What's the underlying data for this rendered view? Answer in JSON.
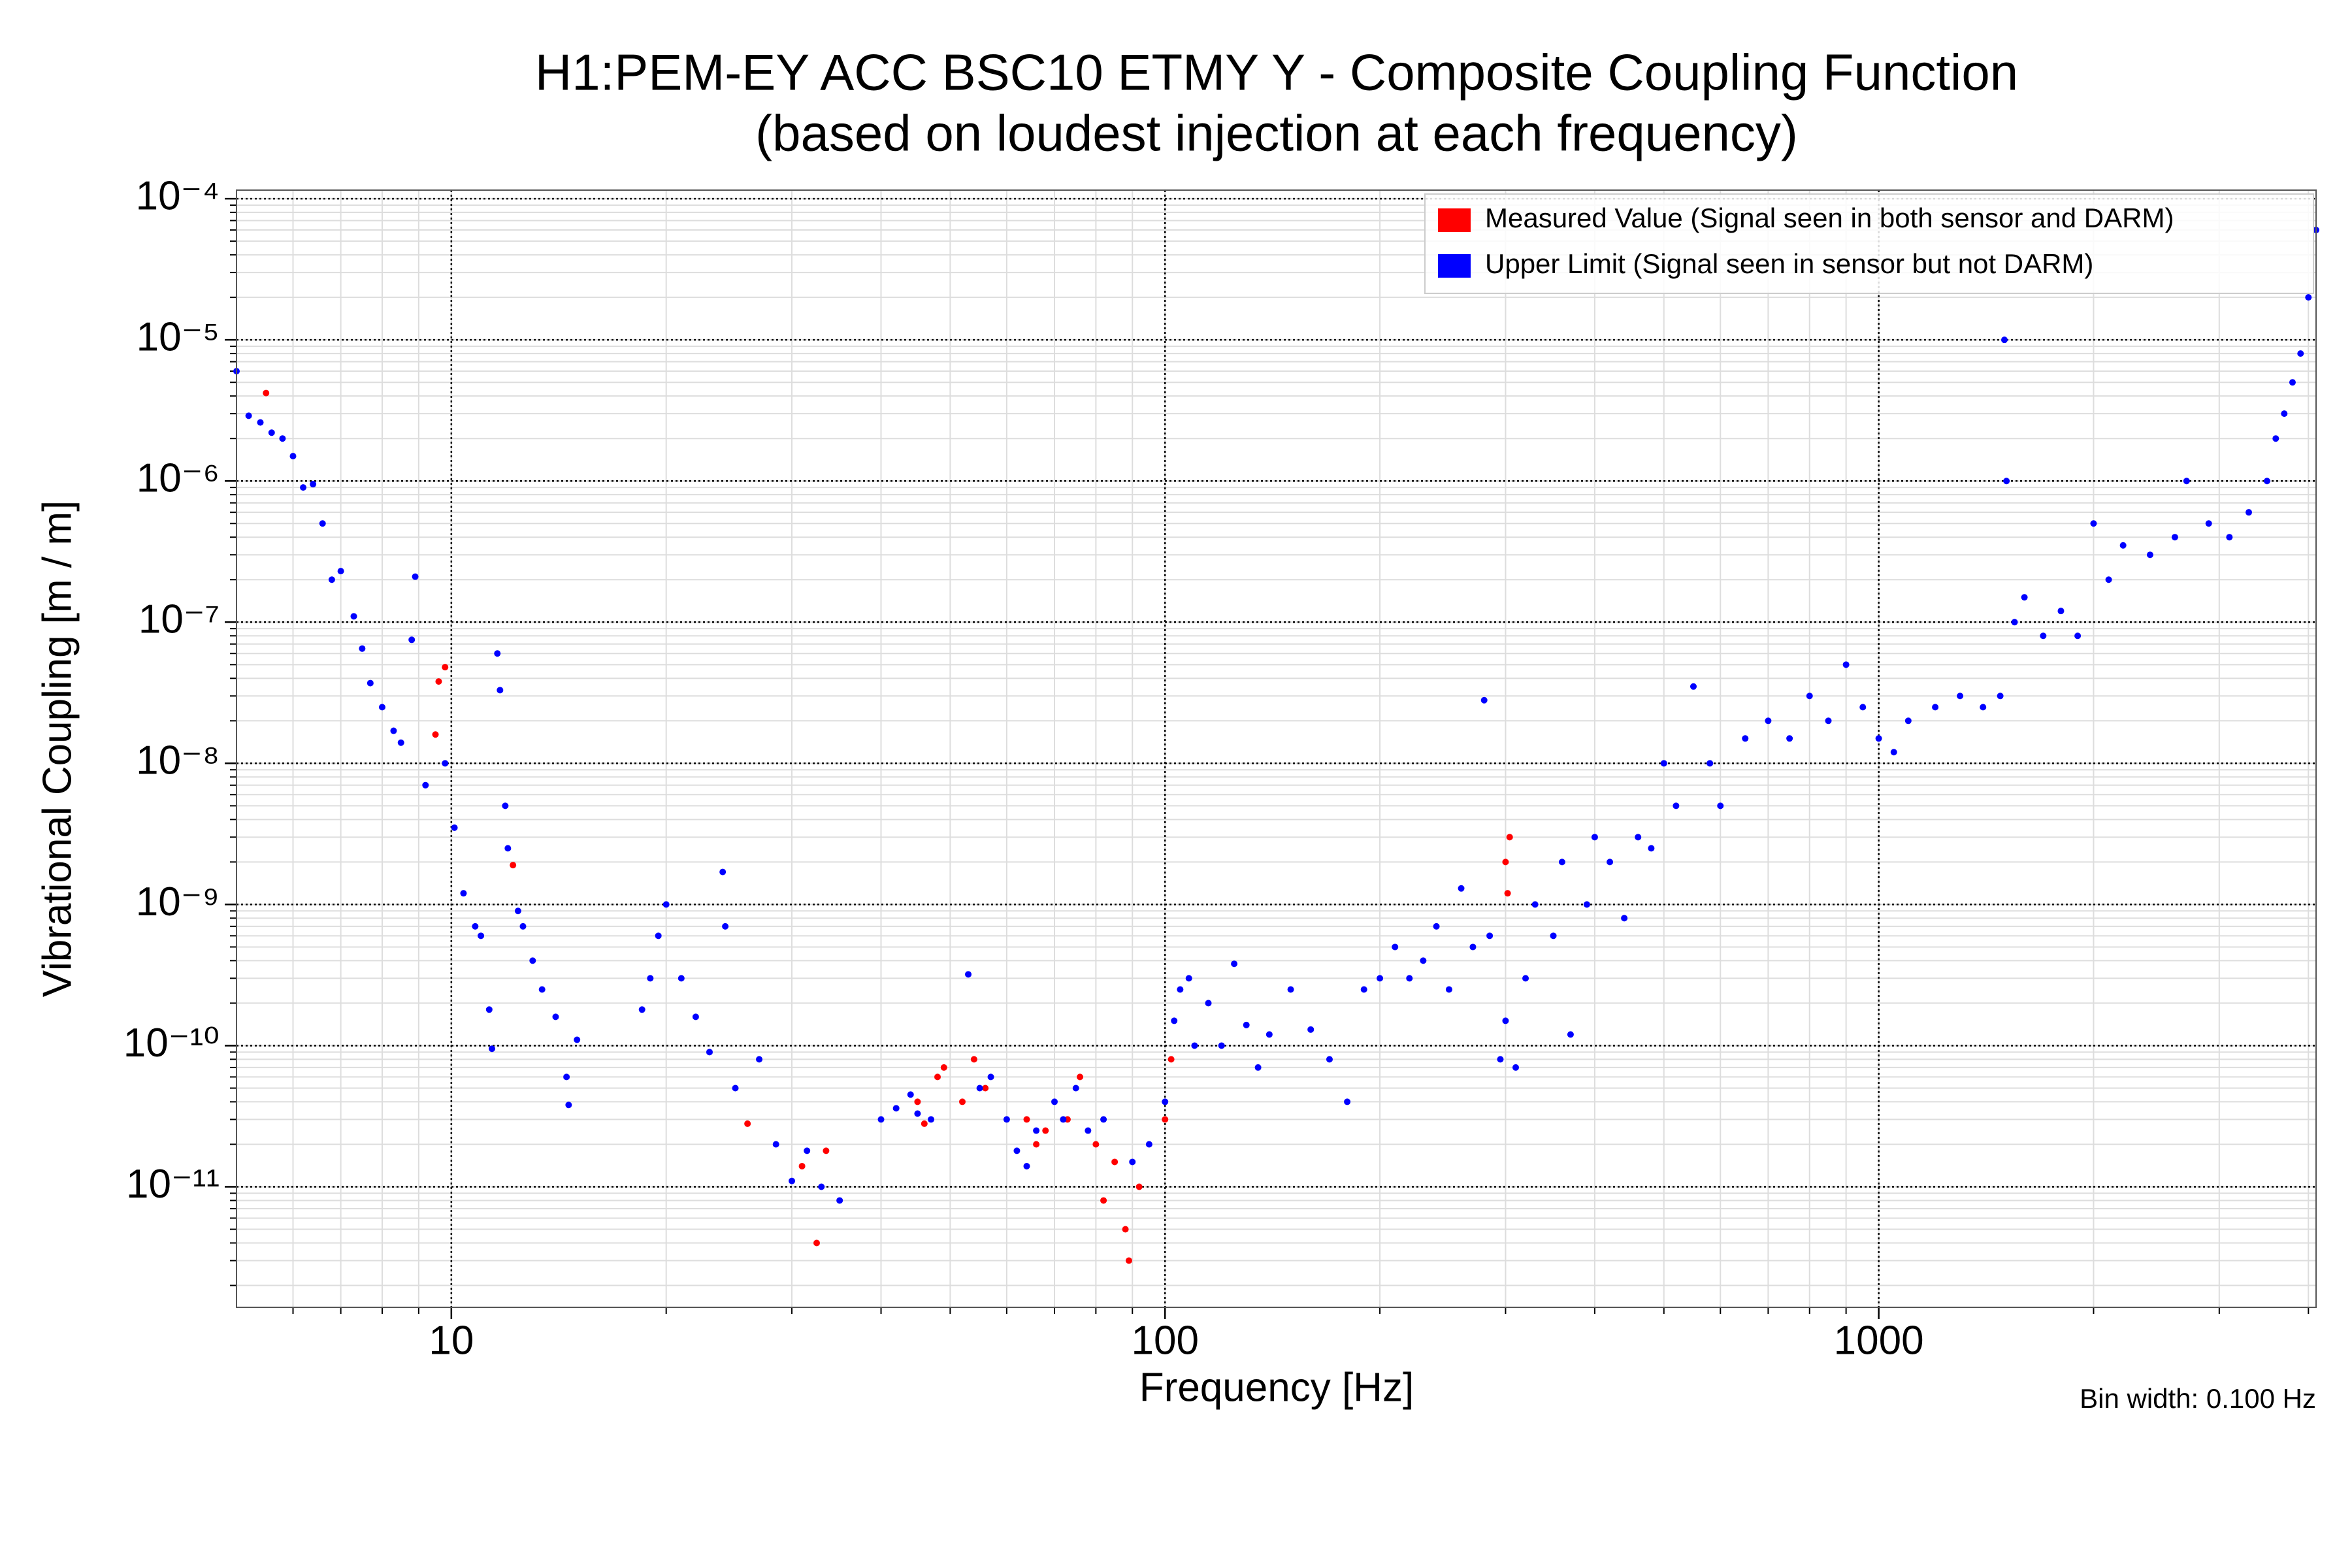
{
  "chart_data": {
    "type": "scatter",
    "title": "H1:PEM-EY ACC BSC10 ETMY Y - Composite Coupling Function",
    "subtitle": "(based on loudest injection at each frequency)",
    "x_label": "Frequency [Hz]",
    "y_label": "Vibrational Coupling [m / m]",
    "annotation": "Bin width: 0.100 Hz",
    "xscale": "log",
    "yscale": "log",
    "xlim": [
      5,
      4100
    ],
    "ylim": [
      1.4e-12,
      0.000115
    ],
    "xticks": [
      10,
      100,
      1000
    ],
    "yticks": [
      {
        "value": 0.0001,
        "label": "10⁻⁴"
      },
      {
        "value": 1e-05,
        "label": "10⁻⁵"
      },
      {
        "value": 1e-06,
        "label": "10⁻⁶"
      },
      {
        "value": 1e-07,
        "label": "10⁻⁷"
      },
      {
        "value": 1e-08,
        "label": "10⁻⁸"
      },
      {
        "value": 1e-09,
        "label": "10⁻⁹"
      },
      {
        "value": 1e-10,
        "label": "10⁻¹⁰"
      },
      {
        "value": 1e-11,
        "label": "10⁻¹¹"
      }
    ],
    "grid": true,
    "minor_grid": true,
    "legend": "upper right",
    "series": [
      {
        "name": "Measured Value (Signal seen in both sensor and DARM)",
        "color": "#ff0000",
        "x": [
          5.5,
          9.5,
          9.6,
          9.8,
          12.2,
          26,
          31,
          32.5,
          33.5,
          45,
          46,
          48,
          49,
          52,
          54,
          56,
          64,
          66,
          68,
          73,
          76,
          80,
          82,
          85,
          88,
          89,
          92,
          100,
          102,
          300,
          302,
          304
        ],
        "values": [
          4.2e-06,
          1.6e-08,
          3.8e-08,
          4.8e-08,
          1.9e-09,
          2.8e-11,
          1.4e-11,
          4e-12,
          1.8e-11,
          4e-11,
          2.8e-11,
          6e-11,
          7e-11,
          4e-11,
          8e-11,
          5e-11,
          3e-11,
          2e-11,
          2.5e-11,
          3e-11,
          6e-11,
          2e-11,
          8e-12,
          1.5e-11,
          5e-12,
          3e-12,
          1e-11,
          3e-11,
          8e-11,
          2e-09,
          1.2e-09,
          3e-09
        ]
      },
      {
        "name": "Upper Limit (Signal seen in sensor but not DARM)",
        "color": "#0000ff",
        "x": [
          5.0,
          5.2,
          5.4,
          5.6,
          5.8,
          6.0,
          6.2,
          6.4,
          6.6,
          6.8,
          7.0,
          7.3,
          7.5,
          7.7,
          8.0,
          8.3,
          8.5,
          8.8,
          8.9,
          9.2,
          9.8,
          10.1,
          10.4,
          10.8,
          11.0,
          11.3,
          11.4,
          11.6,
          11.7,
          11.9,
          12.0,
          12.4,
          12.6,
          13.0,
          13.4,
          14.0,
          14.5,
          14.6,
          15.0,
          18.5,
          19.0,
          19.5,
          20.0,
          21.0,
          22.0,
          23.0,
          24.0,
          24.2,
          25.0,
          27.0,
          28.5,
          30.0,
          31.5,
          33.0,
          35.0,
          40,
          42,
          44,
          45,
          47,
          53,
          55,
          57,
          60,
          62,
          64,
          66,
          70,
          72,
          75,
          78,
          82,
          90,
          95,
          100,
          103,
          105,
          108,
          110,
          115,
          120,
          125,
          130,
          135,
          140,
          150,
          160,
          170,
          180,
          190,
          200,
          210,
          220,
          230,
          240,
          250,
          260,
          270,
          280,
          285,
          295,
          300,
          310,
          320,
          330,
          350,
          360,
          370,
          390,
          400,
          420,
          440,
          460,
          480,
          500,
          520,
          550,
          580,
          600,
          650,
          700,
          750,
          800,
          850,
          900,
          950,
          1000,
          1050,
          1100,
          1200,
          1300,
          1400,
          1480,
          1500,
          1510,
          1550,
          1600,
          1700,
          1800,
          1900,
          2000,
          2100,
          2200,
          2400,
          2600,
          2700,
          2900,
          3100,
          3300,
          3500,
          3600,
          3700,
          3800,
          3900,
          4000,
          4100
        ],
        "values": [
          6e-06,
          2.9e-06,
          2.6e-06,
          2.2e-06,
          2e-06,
          1.5e-06,
          9e-07,
          9.5e-07,
          5e-07,
          2e-07,
          2.3e-07,
          1.1e-07,
          6.5e-08,
          3.7e-08,
          2.5e-08,
          1.7e-08,
          1.4e-08,
          7.5e-08,
          2.1e-07,
          7e-09,
          1e-08,
          3.5e-09,
          1.2e-09,
          7e-10,
          6e-10,
          1.8e-10,
          9.5e-11,
          6e-08,
          3.3e-08,
          5e-09,
          2.5e-09,
          9e-10,
          7e-10,
          4e-10,
          2.5e-10,
          1.6e-10,
          6e-11,
          3.8e-11,
          1.1e-10,
          1.8e-10,
          3e-10,
          6e-10,
          1e-09,
          3e-10,
          1.6e-10,
          9e-11,
          1.7e-09,
          7e-10,
          5e-11,
          8e-11,
          2e-11,
          1.1e-11,
          1.8e-11,
          1e-11,
          8e-12,
          3e-11,
          3.6e-11,
          4.5e-11,
          3.3e-11,
          3e-11,
          3.2e-10,
          5e-11,
          6e-11,
          3e-11,
          1.8e-11,
          1.4e-11,
          2.5e-11,
          4e-11,
          3e-11,
          5e-11,
          2.5e-11,
          3e-11,
          1.5e-11,
          2e-11,
          4e-11,
          1.5e-10,
          2.5e-10,
          3e-10,
          1e-10,
          2e-10,
          1e-10,
          3.8e-10,
          1.4e-10,
          7e-11,
          1.2e-10,
          2.5e-10,
          1.3e-10,
          8e-11,
          4e-11,
          2.5e-10,
          3e-10,
          5e-10,
          3e-10,
          4e-10,
          7e-10,
          2.5e-10,
          1.3e-09,
          5e-10,
          2.8e-08,
          6e-10,
          8e-11,
          1.5e-10,
          7e-11,
          3e-10,
          1e-09,
          6e-10,
          2e-09,
          1.2e-10,
          1e-09,
          3e-09,
          2e-09,
          8e-10,
          3e-09,
          2.5e-09,
          1e-08,
          5e-09,
          3.5e-08,
          1e-08,
          5e-09,
          1.5e-08,
          2e-08,
          1.5e-08,
          3e-08,
          2e-08,
          5e-08,
          2.5e-08,
          1.5e-08,
          1.2e-08,
          2e-08,
          2.5e-08,
          3e-08,
          2.5e-08,
          3e-08,
          1e-05,
          1e-06,
          1e-07,
          1.5e-07,
          8e-08,
          1.2e-07,
          8e-08,
          5e-07,
          2e-07,
          3.5e-07,
          3e-07,
          4e-07,
          1e-06,
          5e-07,
          4e-07,
          6e-07,
          1e-06,
          2e-06,
          3e-06,
          5e-06,
          8e-06,
          2e-05,
          6e-05
        ]
      }
    ]
  }
}
